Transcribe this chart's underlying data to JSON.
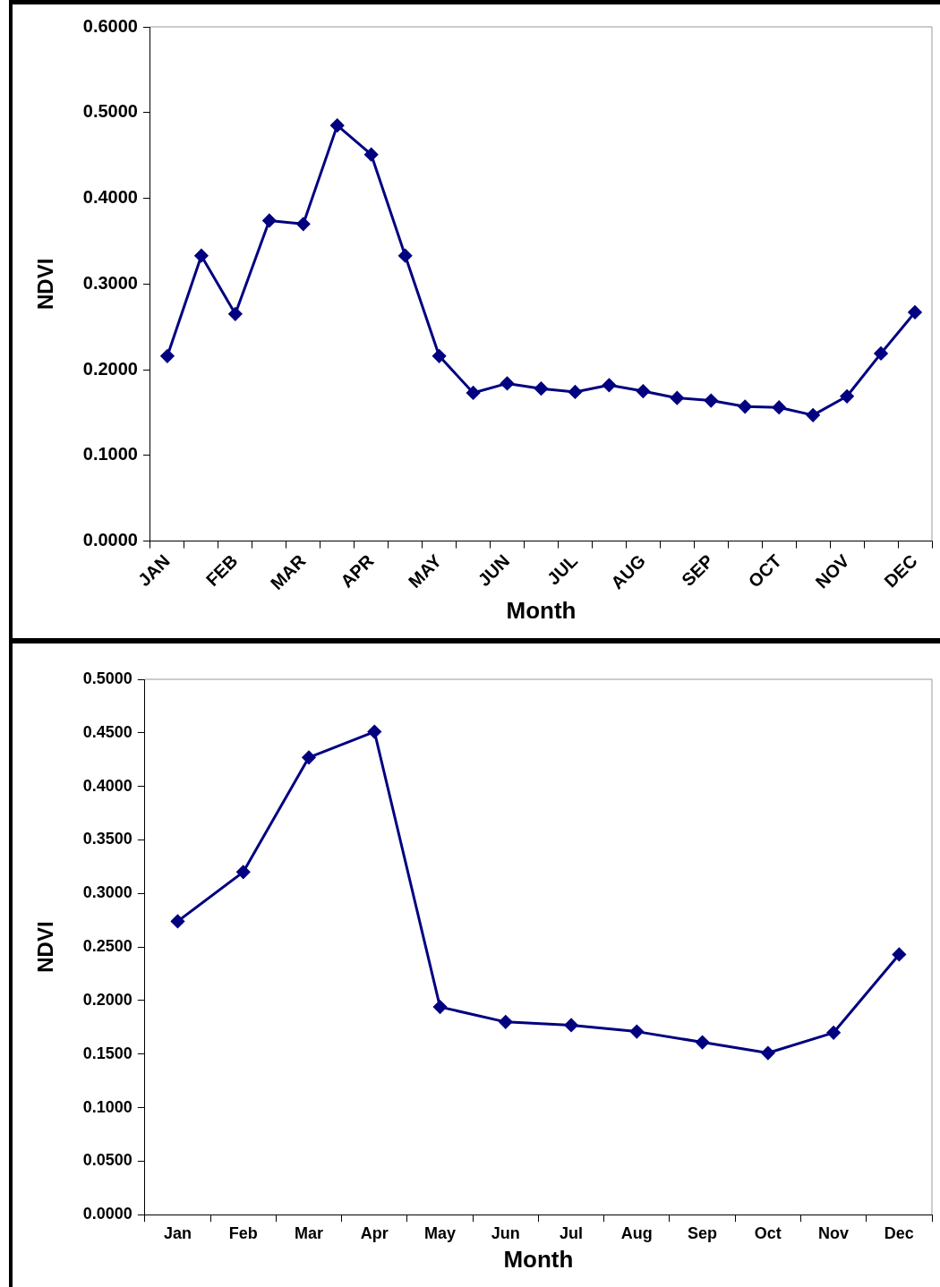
{
  "chart_data": [
    {
      "type": "line",
      "xlabel": "Month",
      "ylabel": "NDVI",
      "categories": [
        "JAN",
        null,
        "FEB",
        null,
        "MAR",
        null,
        "APR",
        null,
        "MAY",
        null,
        "JUN",
        null,
        "JUL",
        null,
        "AUG",
        null,
        "SEP",
        null,
        "OCT",
        null,
        "NOV",
        null,
        "DEC"
      ],
      "series": [
        {
          "color": "#000080",
          "values": [
            0.216,
            0.333,
            0.265,
            0.374,
            0.37,
            0.485,
            0.451,
            0.333,
            0.216,
            0.173,
            0.184,
            0.178,
            0.174,
            0.182,
            0.175,
            0.167,
            0.164,
            0.157,
            0.156,
            0.147,
            0.169,
            0.219,
            0.267
          ]
        }
      ],
      "ylim": [
        0,
        0.6
      ],
      "yticks": [
        {
          "value": 0,
          "label": "0.0000"
        },
        {
          "value": 0.1,
          "label": "0.1000"
        },
        {
          "value": 0.2,
          "label": "0.2000"
        },
        {
          "value": 0.3,
          "label": "0.3000"
        },
        {
          "value": 0.4,
          "label": "0.4000"
        },
        {
          "value": 0.5,
          "label": "0.5000"
        },
        {
          "value": 0.6,
          "label": "0.6000"
        }
      ],
      "grid": false,
      "legend": false,
      "marker": "diamond",
      "line_style": "solid"
    },
    {
      "type": "line",
      "xlabel": "Month",
      "ylabel": "NDVI",
      "categories": [
        "Jan",
        "Feb",
        "Mar",
        "Apr",
        "May",
        "Jun",
        "Jul",
        "Aug",
        "Sep",
        "Oct",
        "Nov",
        "Dec"
      ],
      "series": [
        {
          "color": "#000080",
          "values": [
            0.274,
            0.32,
            0.427,
            0.451,
            0.194,
            0.18,
            0.177,
            0.171,
            0.161,
            0.151,
            0.17,
            0.243
          ]
        }
      ],
      "ylim": [
        0,
        0.5
      ],
      "yticks": [
        {
          "value": 0,
          "label": "0.0000"
        },
        {
          "value": 0.05,
          "label": "0.0500"
        },
        {
          "value": 0.1,
          "label": "0.1000"
        },
        {
          "value": 0.15,
          "label": "0.1500"
        },
        {
          "value": 0.2,
          "label": "0.2000"
        },
        {
          "value": 0.25,
          "label": "0.2500"
        },
        {
          "value": 0.3,
          "label": "0.3000"
        },
        {
          "value": 0.35,
          "label": "0.3500"
        },
        {
          "value": 0.4,
          "label": "0.4000"
        },
        {
          "value": 0.45,
          "label": "0.4500"
        },
        {
          "value": 0.5,
          "label": "0.5000"
        }
      ],
      "grid": false,
      "legend": false,
      "marker": "diamond",
      "line_style": "solid"
    }
  ]
}
